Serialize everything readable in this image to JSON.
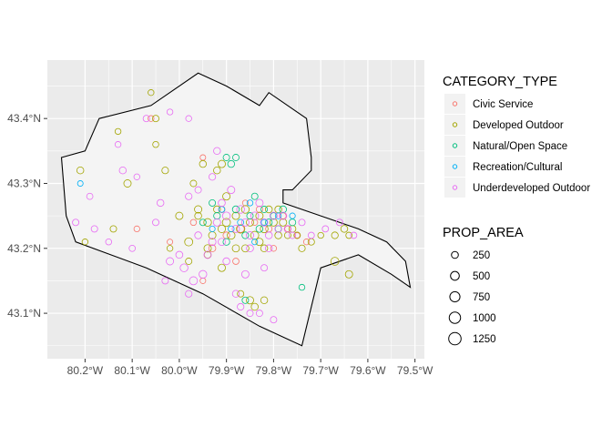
{
  "chart_data": {
    "type": "scatter",
    "title": "",
    "xlabel": "",
    "ylabel": "",
    "xlim": [
      -80.28,
      -79.48
    ],
    "ylim": [
      43.03,
      43.49
    ],
    "grid": true,
    "legend_placement": "right",
    "x_ticks": [
      {
        "value": -80.2,
        "label": "80.2°W"
      },
      {
        "value": -80.1,
        "label": "80.1°W"
      },
      {
        "value": -80.0,
        "label": "80.0°W"
      },
      {
        "value": -79.9,
        "label": "79.9°W"
      },
      {
        "value": -79.8,
        "label": "79.8°W"
      },
      {
        "value": -79.7,
        "label": "79.7°W"
      },
      {
        "value": -79.6,
        "label": "79.6°W"
      },
      {
        "value": -79.5,
        "label": "79.5°W"
      }
    ],
    "y_ticks": [
      {
        "value": 43.1,
        "label": "43.1°N"
      },
      {
        "value": 43.2,
        "label": "43.2°N"
      },
      {
        "value": 43.3,
        "label": "43.3°N"
      },
      {
        "value": 43.4,
        "label": "43.4°N"
      }
    ],
    "boundary": [
      [
        -80.17,
        43.4
      ],
      [
        -80.06,
        43.42
      ],
      [
        -79.96,
        43.47
      ],
      [
        -79.9,
        43.45
      ],
      [
        -79.83,
        43.42
      ],
      [
        -79.81,
        43.44
      ],
      [
        -79.73,
        43.4
      ],
      [
        -79.72,
        43.34
      ],
      [
        -79.72,
        43.32
      ],
      [
        -79.76,
        43.29
      ],
      [
        -79.78,
        43.29
      ],
      [
        -79.78,
        43.27
      ],
      [
        -79.7,
        43.25
      ],
      [
        -79.62,
        43.23
      ],
      [
        -79.56,
        43.21
      ],
      [
        -79.52,
        43.18
      ],
      [
        -79.51,
        43.14
      ],
      [
        -79.55,
        43.16
      ],
      [
        -79.62,
        43.19
      ],
      [
        -79.7,
        43.17
      ],
      [
        -79.74,
        43.05
      ],
      [
        -79.83,
        43.08
      ],
      [
        -79.95,
        43.13
      ],
      [
        -80.07,
        43.17
      ],
      [
        -80.22,
        43.21
      ],
      [
        -80.24,
        43.25
      ],
      [
        -80.25,
        43.34
      ],
      [
        -80.2,
        43.35
      ],
      [
        -80.17,
        43.4
      ]
    ],
    "legends": {
      "color": {
        "title": "CATEGORY_TYPE",
        "entries": [
          {
            "name": "Civic Service",
            "color": "#F8766D"
          },
          {
            "name": "Developed Outdoor",
            "color": "#A3A500"
          },
          {
            "name": "Natural/Open Space",
            "color": "#00BF7D"
          },
          {
            "name": "Recreation/Cultural",
            "color": "#00B0F6"
          },
          {
            "name": "Underdeveloped Outdoor",
            "color": "#E76BF3"
          }
        ]
      },
      "size": {
        "title": "PROP_AREA",
        "entries": [
          {
            "label": "250",
            "value": 250
          },
          {
            "label": "500",
            "value": 500
          },
          {
            "label": "750",
            "value": 750
          },
          {
            "label": "1000",
            "value": 1000
          },
          {
            "label": "1250",
            "value": 1250
          }
        ]
      }
    },
    "series": [
      {
        "name": "Civic Service",
        "points": [
          [
            -80.06,
            43.4,
            150
          ],
          [
            -79.95,
            43.34,
            120
          ],
          [
            -79.91,
            43.26,
            200
          ],
          [
            -79.87,
            43.23,
            300
          ],
          [
            -79.84,
            43.24,
            150
          ],
          [
            -79.81,
            43.23,
            200
          ],
          [
            -79.78,
            43.25,
            180
          ],
          [
            -79.75,
            43.22,
            120
          ],
          [
            -79.93,
            43.2,
            260
          ],
          [
            -79.88,
            43.18,
            180
          ],
          [
            -79.8,
            43.2,
            150
          ],
          [
            -79.86,
            43.27,
            130
          ],
          [
            -79.97,
            43.24,
            160
          ],
          [
            -80.02,
            43.21,
            120
          ],
          [
            -80.09,
            43.23,
            140
          ],
          [
            -79.83,
            43.26,
            200
          ],
          [
            -79.9,
            43.22,
            220
          ],
          [
            -79.77,
            43.23,
            150
          ],
          [
            -79.73,
            43.21,
            150
          ],
          [
            -79.95,
            43.15,
            130
          ]
        ]
      },
      {
        "name": "Developed Outdoor",
        "points": [
          [
            -80.06,
            43.44,
            150
          ],
          [
            -80.05,
            43.4,
            200
          ],
          [
            -80.05,
            43.36,
            160
          ],
          [
            -80.13,
            43.38,
            150
          ],
          [
            -80.11,
            43.3,
            300
          ],
          [
            -80.21,
            43.32,
            250
          ],
          [
            -80.2,
            43.21,
            150
          ],
          [
            -80.14,
            43.23,
            200
          ],
          [
            -80.03,
            43.32,
            220
          ],
          [
            -80.0,
            43.25,
            300
          ],
          [
            -79.98,
            43.21,
            400
          ],
          [
            -79.96,
            43.25,
            250
          ],
          [
            -79.94,
            43.24,
            350
          ],
          [
            -79.93,
            43.22,
            300
          ],
          [
            -79.92,
            43.26,
            250
          ],
          [
            -79.9,
            43.28,
            300
          ],
          [
            -79.9,
            43.24,
            400
          ],
          [
            -79.89,
            43.22,
            350
          ],
          [
            -79.88,
            43.25,
            300
          ],
          [
            -79.87,
            43.23,
            450
          ],
          [
            -79.86,
            43.26,
            350
          ],
          [
            -79.85,
            43.24,
            300
          ],
          [
            -79.84,
            43.22,
            400
          ],
          [
            -79.83,
            43.25,
            300
          ],
          [
            -79.82,
            43.23,
            350
          ],
          [
            -79.81,
            43.26,
            250
          ],
          [
            -79.8,
            43.24,
            300
          ],
          [
            -79.79,
            43.22,
            250
          ],
          [
            -79.78,
            43.24,
            300
          ],
          [
            -79.77,
            43.22,
            200
          ],
          [
            -79.76,
            43.23,
            250
          ],
          [
            -79.75,
            43.22,
            200
          ],
          [
            -79.74,
            43.2,
            220
          ],
          [
            -79.72,
            43.21,
            200
          ],
          [
            -79.7,
            43.22,
            150
          ],
          [
            -79.67,
            43.22,
            220
          ],
          [
            -79.65,
            43.23,
            250
          ],
          [
            -79.64,
            43.22,
            180
          ],
          [
            -79.67,
            43.18,
            380
          ],
          [
            -79.64,
            43.16,
            300
          ],
          [
            -79.85,
            43.12,
            300
          ],
          [
            -79.84,
            43.11,
            260
          ],
          [
            -79.82,
            43.12,
            250
          ],
          [
            -79.87,
            43.13,
            200
          ],
          [
            -79.91,
            43.17,
            300
          ],
          [
            -79.94,
            43.19,
            250
          ],
          [
            -79.98,
            43.18,
            200
          ],
          [
            -80.02,
            43.2,
            150
          ],
          [
            -79.92,
            43.32,
            250
          ],
          [
            -79.91,
            43.33,
            300
          ],
          [
            -79.97,
            43.3,
            200
          ],
          [
            -79.95,
            43.33,
            250
          ],
          [
            -79.94,
            43.2,
            300
          ],
          [
            -79.86,
            43.2,
            280
          ],
          [
            -79.82,
            43.2,
            260
          ],
          [
            -79.79,
            43.26,
            250
          ],
          [
            -79.96,
            43.26,
            300
          ],
          [
            -79.91,
            43.23,
            330
          ],
          [
            -79.88,
            43.2,
            280
          ],
          [
            -79.83,
            43.21,
            300
          ]
        ]
      },
      {
        "name": "Natural/Open Space",
        "points": [
          [
            -79.9,
            43.34,
            200
          ],
          [
            -79.89,
            43.33,
            250
          ],
          [
            -79.88,
            43.34,
            200
          ],
          [
            -79.92,
            43.25,
            220
          ],
          [
            -79.88,
            43.26,
            250
          ],
          [
            -79.85,
            43.25,
            200
          ],
          [
            -79.83,
            43.23,
            250
          ],
          [
            -79.8,
            43.25,
            200
          ],
          [
            -79.78,
            43.26,
            250
          ],
          [
            -79.76,
            43.24,
            220
          ],
          [
            -79.95,
            43.24,
            200
          ],
          [
            -79.84,
            43.28,
            200
          ],
          [
            -79.82,
            43.26,
            200
          ],
          [
            -79.74,
            43.14,
            150
          ],
          [
            -79.86,
            43.12,
            200
          ],
          [
            -79.9,
            43.21,
            220
          ],
          [
            -79.93,
            43.27,
            200
          ],
          [
            -79.79,
            43.23,
            200
          ],
          [
            -79.86,
            43.22,
            220
          ],
          [
            -79.81,
            43.24,
            230
          ]
        ]
      },
      {
        "name": "Recreation/Cultural",
        "points": [
          [
            -80.21,
            43.3,
            120
          ],
          [
            -79.91,
            43.26,
            150
          ],
          [
            -79.87,
            43.24,
            180
          ],
          [
            -79.82,
            43.24,
            150
          ],
          [
            -79.79,
            43.25,
            150
          ],
          [
            -79.85,
            43.27,
            150
          ],
          [
            -79.89,
            43.23,
            150
          ],
          [
            -79.93,
            43.23,
            130
          ],
          [
            -79.76,
            43.25,
            130
          ],
          [
            -79.84,
            43.21,
            130
          ]
        ]
      },
      {
        "name": "Underdeveloped Outdoor",
        "points": [
          [
            -80.07,
            43.4,
            200
          ],
          [
            -80.13,
            43.36,
            150
          ],
          [
            -80.02,
            43.41,
            150
          ],
          [
            -79.98,
            43.4,
            150
          ],
          [
            -80.19,
            43.28,
            180
          ],
          [
            -80.18,
            43.23,
            200
          ],
          [
            -80.22,
            43.24,
            200
          ],
          [
            -80.15,
            43.21,
            160
          ],
          [
            -80.12,
            43.32,
            250
          ],
          [
            -80.09,
            43.31,
            150
          ],
          [
            -80.04,
            43.27,
            250
          ],
          [
            -80.02,
            43.18,
            300
          ],
          [
            -80.0,
            43.19,
            260
          ],
          [
            -79.99,
            43.17,
            360
          ],
          [
            -79.97,
            43.15,
            400
          ],
          [
            -79.95,
            43.16,
            350
          ],
          [
            -79.94,
            43.19,
            300
          ],
          [
            -79.96,
            43.22,
            250
          ],
          [
            -79.92,
            43.24,
            300
          ],
          [
            -79.91,
            43.27,
            260
          ],
          [
            -79.89,
            43.29,
            300
          ],
          [
            -79.9,
            43.25,
            350
          ],
          [
            -79.88,
            43.23,
            300
          ],
          [
            -79.87,
            43.26,
            350
          ],
          [
            -79.86,
            43.24,
            300
          ],
          [
            -79.85,
            43.22,
            300
          ],
          [
            -79.84,
            43.25,
            350
          ],
          [
            -79.83,
            43.27,
            300
          ],
          [
            -79.82,
            43.24,
            300
          ],
          [
            -79.81,
            43.22,
            250
          ],
          [
            -79.8,
            43.25,
            300
          ],
          [
            -79.79,
            43.23,
            250
          ],
          [
            -79.78,
            43.25,
            300
          ],
          [
            -79.77,
            43.23,
            250
          ],
          [
            -79.76,
            43.22,
            200
          ],
          [
            -79.74,
            43.24,
            200
          ],
          [
            -79.72,
            43.22,
            180
          ],
          [
            -79.69,
            43.23,
            180
          ],
          [
            -79.66,
            43.24,
            200
          ],
          [
            -79.63,
            43.22,
            180
          ],
          [
            -79.88,
            43.13,
            250
          ],
          [
            -79.83,
            43.1,
            200
          ],
          [
            -79.8,
            43.09,
            200
          ],
          [
            -79.87,
            43.11,
            220
          ],
          [
            -79.85,
            43.1,
            200
          ],
          [
            -79.92,
            43.35,
            250
          ],
          [
            -79.93,
            43.31,
            220
          ],
          [
            -79.98,
            43.28,
            220
          ],
          [
            -79.96,
            43.29,
            200
          ],
          [
            -80.05,
            43.24,
            200
          ],
          [
            -80.1,
            43.2,
            180
          ],
          [
            -80.03,
            43.15,
            200
          ],
          [
            -79.98,
            43.13,
            220
          ],
          [
            -79.9,
            43.18,
            250
          ],
          [
            -79.86,
            43.16,
            300
          ],
          [
            -79.82,
            43.17,
            200
          ],
          [
            -79.93,
            43.21,
            300
          ],
          [
            -79.91,
            43.21,
            280
          ],
          [
            -79.85,
            43.2,
            260
          ],
          [
            -79.81,
            43.2,
            260
          ]
        ]
      }
    ]
  }
}
